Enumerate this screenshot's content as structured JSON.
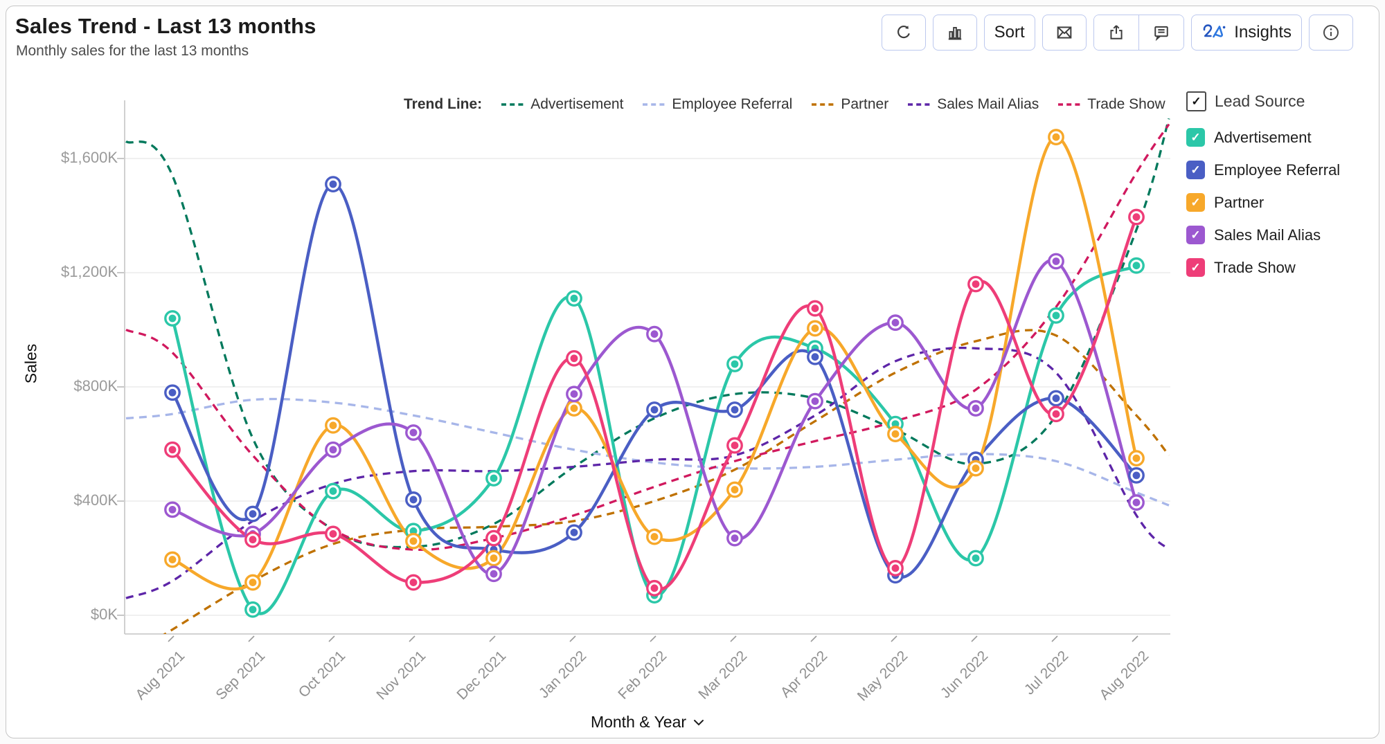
{
  "header": {
    "title": "Sales Trend - Last 13 months",
    "subtitle": "Monthly sales for the last 13 months"
  },
  "toolbar": {
    "sort_label": "Sort",
    "insights_label": "Insights",
    "icons": [
      "refresh-icon",
      "bar-chart-icon",
      "mail-icon",
      "share-icon",
      "comment-icon",
      "zia-icon",
      "info-icon"
    ]
  },
  "trend_legend": {
    "label": "Trend Line:",
    "items": [
      {
        "label": "Advertisement",
        "color": "#00795C"
      },
      {
        "label": "Employee Referral",
        "color": "#A7B6E9"
      },
      {
        "label": "Partner",
        "color": "#BF7100"
      },
      {
        "label": "Sales Mail Alias",
        "color": "#5D25A8"
      },
      {
        "label": "Trade Show",
        "color": "#D0195E"
      }
    ]
  },
  "lead_source_legend": {
    "title": "Lead Source",
    "header_checked": true,
    "items": [
      {
        "label": "Advertisement",
        "color": "#2BC7A8",
        "checked": true
      },
      {
        "label": "Employee Referral",
        "color": "#4A5EC4",
        "checked": true
      },
      {
        "label": "Partner",
        "color": "#F7A82A",
        "checked": true
      },
      {
        "label": "Sales Mail Alias",
        "color": "#9C58D0",
        "checked": true
      },
      {
        "label": "Trade Show",
        "color": "#EE3D78",
        "checked": true
      }
    ]
  },
  "chart_data": {
    "type": "line",
    "title": "Sales Trend - Last 13 months",
    "xlabel": "Month & Year",
    "ylabel": "Sales",
    "unit": "$K",
    "x": [
      "Aug 2021",
      "Sep 2021",
      "Oct 2021",
      "Nov 2021",
      "Dec 2021",
      "Jan 2022",
      "Feb 2022",
      "Mar 2022",
      "Apr 2022",
      "May 2022",
      "Jun 2022",
      "Jul 2022",
      "Aug 2022"
    ],
    "y_ticks": [
      "$0K",
      "$400K",
      "$800K",
      "$1,200K",
      "$1,600K"
    ],
    "y_tick_values": [
      0,
      400,
      800,
      1200,
      1600
    ],
    "ylim": [
      -65,
      1790
    ],
    "grid": true,
    "legend_position": "right",
    "series": [
      {
        "name": "Advertisement",
        "style": "solid",
        "color": "#2BC7A8",
        "values": [
          1040,
          20,
          435,
          295,
          480,
          1110,
          70,
          880,
          935,
          670,
          200,
          1050,
          1225
        ]
      },
      {
        "name": "Employee Referral",
        "style": "solid",
        "color": "#4A5EC4",
        "values": [
          780,
          355,
          1510,
          405,
          230,
          290,
          720,
          720,
          905,
          140,
          545,
          760,
          490
        ]
      },
      {
        "name": "Partner",
        "style": "solid",
        "color": "#F7A82A",
        "values": [
          195,
          115,
          665,
          260,
          200,
          725,
          275,
          440,
          1005,
          635,
          515,
          1675,
          550
        ]
      },
      {
        "name": "Sales Mail Alias",
        "style": "solid",
        "color": "#9C58D0",
        "values": [
          370,
          285,
          580,
          640,
          145,
          775,
          985,
          270,
          750,
          1025,
          725,
          1240,
          395
        ]
      },
      {
        "name": "Trade Show",
        "style": "solid",
        "color": "#EE3D78",
        "values": [
          580,
          265,
          285,
          115,
          270,
          900,
          95,
          595,
          1075,
          165,
          1160,
          705,
          1395
        ]
      },
      {
        "name": "Advertisement trend",
        "style": "dashed",
        "color": "#00795C",
        "values": [
          1540,
          620,
          300,
          240,
          320,
          520,
          690,
          775,
          760,
          650,
          530,
          700,
          1350
        ],
        "edge_values": [
          1660,
          1740
        ]
      },
      {
        "name": "Employee Referral trend",
        "style": "dashed",
        "color": "#A7B6E9",
        "values": [
          705,
          755,
          745,
          700,
          640,
          580,
          535,
          515,
          520,
          545,
          565,
          540,
          430
        ],
        "edge_values": [
          690,
          385
        ]
      },
      {
        "name": "Partner trend",
        "style": "dashed",
        "color": "#BF7100",
        "values": [
          -50,
          120,
          250,
          300,
          310,
          330,
          400,
          510,
          680,
          850,
          960,
          980,
          700
        ],
        "edge_values": [
          -150,
          560
        ]
      },
      {
        "name": "Sales Mail Alias trend",
        "style": "dashed",
        "color": "#5D25A8",
        "values": [
          120,
          330,
          460,
          505,
          505,
          520,
          545,
          560,
          700,
          890,
          935,
          850,
          350
        ],
        "edge_values": [
          60,
          230
        ]
      },
      {
        "name": "Trade Show trend",
        "style": "dashed",
        "color": "#D0195E",
        "values": [
          920,
          560,
          300,
          230,
          270,
          350,
          450,
          540,
          610,
          680,
          790,
          1080,
          1550
        ],
        "edge_values": [
          1000,
          1720
        ]
      }
    ]
  }
}
